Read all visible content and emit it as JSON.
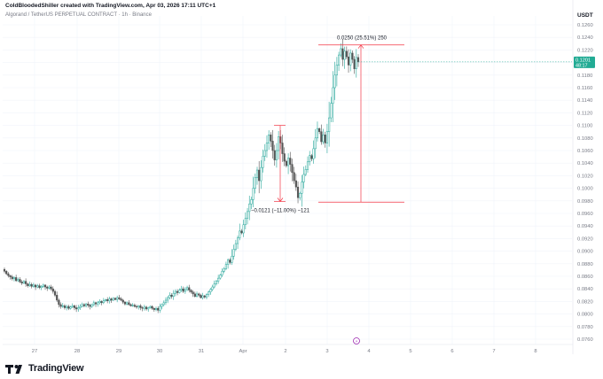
{
  "header": {
    "credit": "ColdBloodedShiller created with TradingView.com, Apr 03, 2026 17:11 UTC+1",
    "symbol": "Algorand / TetherUS PERPETUAL CONTRACT · 1h · Binance"
  },
  "footer": {
    "brand": "TradingView"
  },
  "colors": {
    "up": "#26a69a",
    "down": "#555555",
    "measure": "#f23645",
    "price_badge": "#22ab94",
    "grid": "#f0f3fa",
    "axis_text": "#787b86"
  },
  "chart_data": {
    "type": "candlestick",
    "quote_currency": "USDT",
    "yaxis": {
      "ticks": [
        "0.1260",
        "0.1240",
        "0.1220",
        "0.1200",
        "0.1180",
        "0.1160",
        "0.1140",
        "0.1120",
        "0.1100",
        "0.1080",
        "0.1060",
        "0.1040",
        "0.1020",
        "0.1000",
        "0.0980",
        "0.0960",
        "0.0940",
        "0.0920",
        "0.0900",
        "0.0880",
        "0.0860",
        "0.0840",
        "0.0820",
        "0.0800",
        "0.0780",
        "0.0760"
      ],
      "min": 0.076,
      "max": 0.126
    },
    "xaxis": {
      "ticks": [
        "27",
        "28",
        "29",
        "30",
        "31",
        "Apr",
        "2",
        "3",
        "4",
        "5",
        "6",
        "7",
        "8"
      ]
    },
    "current_price": {
      "price": "0.1201",
      "countdown": "48:17"
    },
    "measure_up": {
      "label": "0.0250 (25.51%) 250",
      "from": 0.0978,
      "to": 0.1228,
      "from_x": "3",
      "to_x": "3"
    },
    "measure_down": {
      "label": "−0.0121 (−11.00%) −121",
      "from": 0.11,
      "to": 0.0979
    },
    "event_marker": "⚡",
    "closes": [
      0.0868,
      0.0864,
      0.0861,
      0.0859,
      0.0856,
      0.0858,
      0.0853,
      0.0855,
      0.0851,
      0.0849,
      0.0852,
      0.0848,
      0.0845,
      0.0847,
      0.0844,
      0.0846,
      0.0843,
      0.0845,
      0.0842,
      0.0844,
      0.0846,
      0.0843,
      0.0841,
      0.0843,
      0.084,
      0.0836,
      0.083,
      0.0822,
      0.0815,
      0.0812,
      0.0813,
      0.081,
      0.0812,
      0.0809,
      0.0811,
      0.0813,
      0.081,
      0.0808,
      0.081,
      0.0812,
      0.0815,
      0.0813,
      0.0816,
      0.0814,
      0.0812,
      0.0815,
      0.0818,
      0.0816,
      0.0818,
      0.082,
      0.0818,
      0.0821,
      0.0823,
      0.0821,
      0.0824,
      0.0822,
      0.0825,
      0.0823,
      0.0826,
      0.0824,
      0.0822,
      0.0819,
      0.0816,
      0.0818,
      0.0815,
      0.0813,
      0.0814,
      0.0812,
      0.0811,
      0.0813,
      0.081,
      0.0809,
      0.0811,
      0.0808,
      0.081,
      0.0812,
      0.0809,
      0.0807,
      0.0809,
      0.0806,
      0.0812,
      0.0815,
      0.0818,
      0.0822,
      0.0826,
      0.083,
      0.0828,
      0.0833,
      0.0836,
      0.0834,
      0.0838,
      0.084,
      0.0836,
      0.0839,
      0.0842,
      0.0838,
      0.0835,
      0.0832,
      0.0828,
      0.0832,
      0.083,
      0.0826,
      0.0829,
      0.0827,
      0.0831,
      0.0835,
      0.0839,
      0.0843,
      0.0848,
      0.0852,
      0.0857,
      0.0862,
      0.0868,
      0.0872,
      0.0879,
      0.0886,
      0.0882,
      0.0892,
      0.0903,
      0.0912,
      0.0921,
      0.0932,
      0.0929,
      0.0942,
      0.0952,
      0.0963,
      0.0975,
      0.0982,
      0.1,
      0.1017,
      0.1029,
      0.1012,
      0.1033,
      0.1051,
      0.106,
      0.1072,
      0.1085,
      0.1075,
      0.106,
      0.1045,
      0.106,
      0.1082,
      0.1072,
      0.1055,
      0.1043,
      0.1036,
      0.1048,
      0.1038,
      0.1025,
      0.1012,
      0.1002,
      0.0985,
      0.0992,
      0.101,
      0.1022,
      0.103,
      0.1042,
      0.1052,
      0.1047,
      0.1063,
      0.108,
      0.1095,
      0.109,
      0.1074,
      0.1085,
      0.1072,
      0.109,
      0.1112,
      0.1135,
      0.116,
      0.118,
      0.1196,
      0.1212,
      0.1222,
      0.1205,
      0.1218,
      0.1209,
      0.1196,
      0.1215,
      0.1205,
      0.119,
      0.1208,
      0.1201
    ]
  }
}
